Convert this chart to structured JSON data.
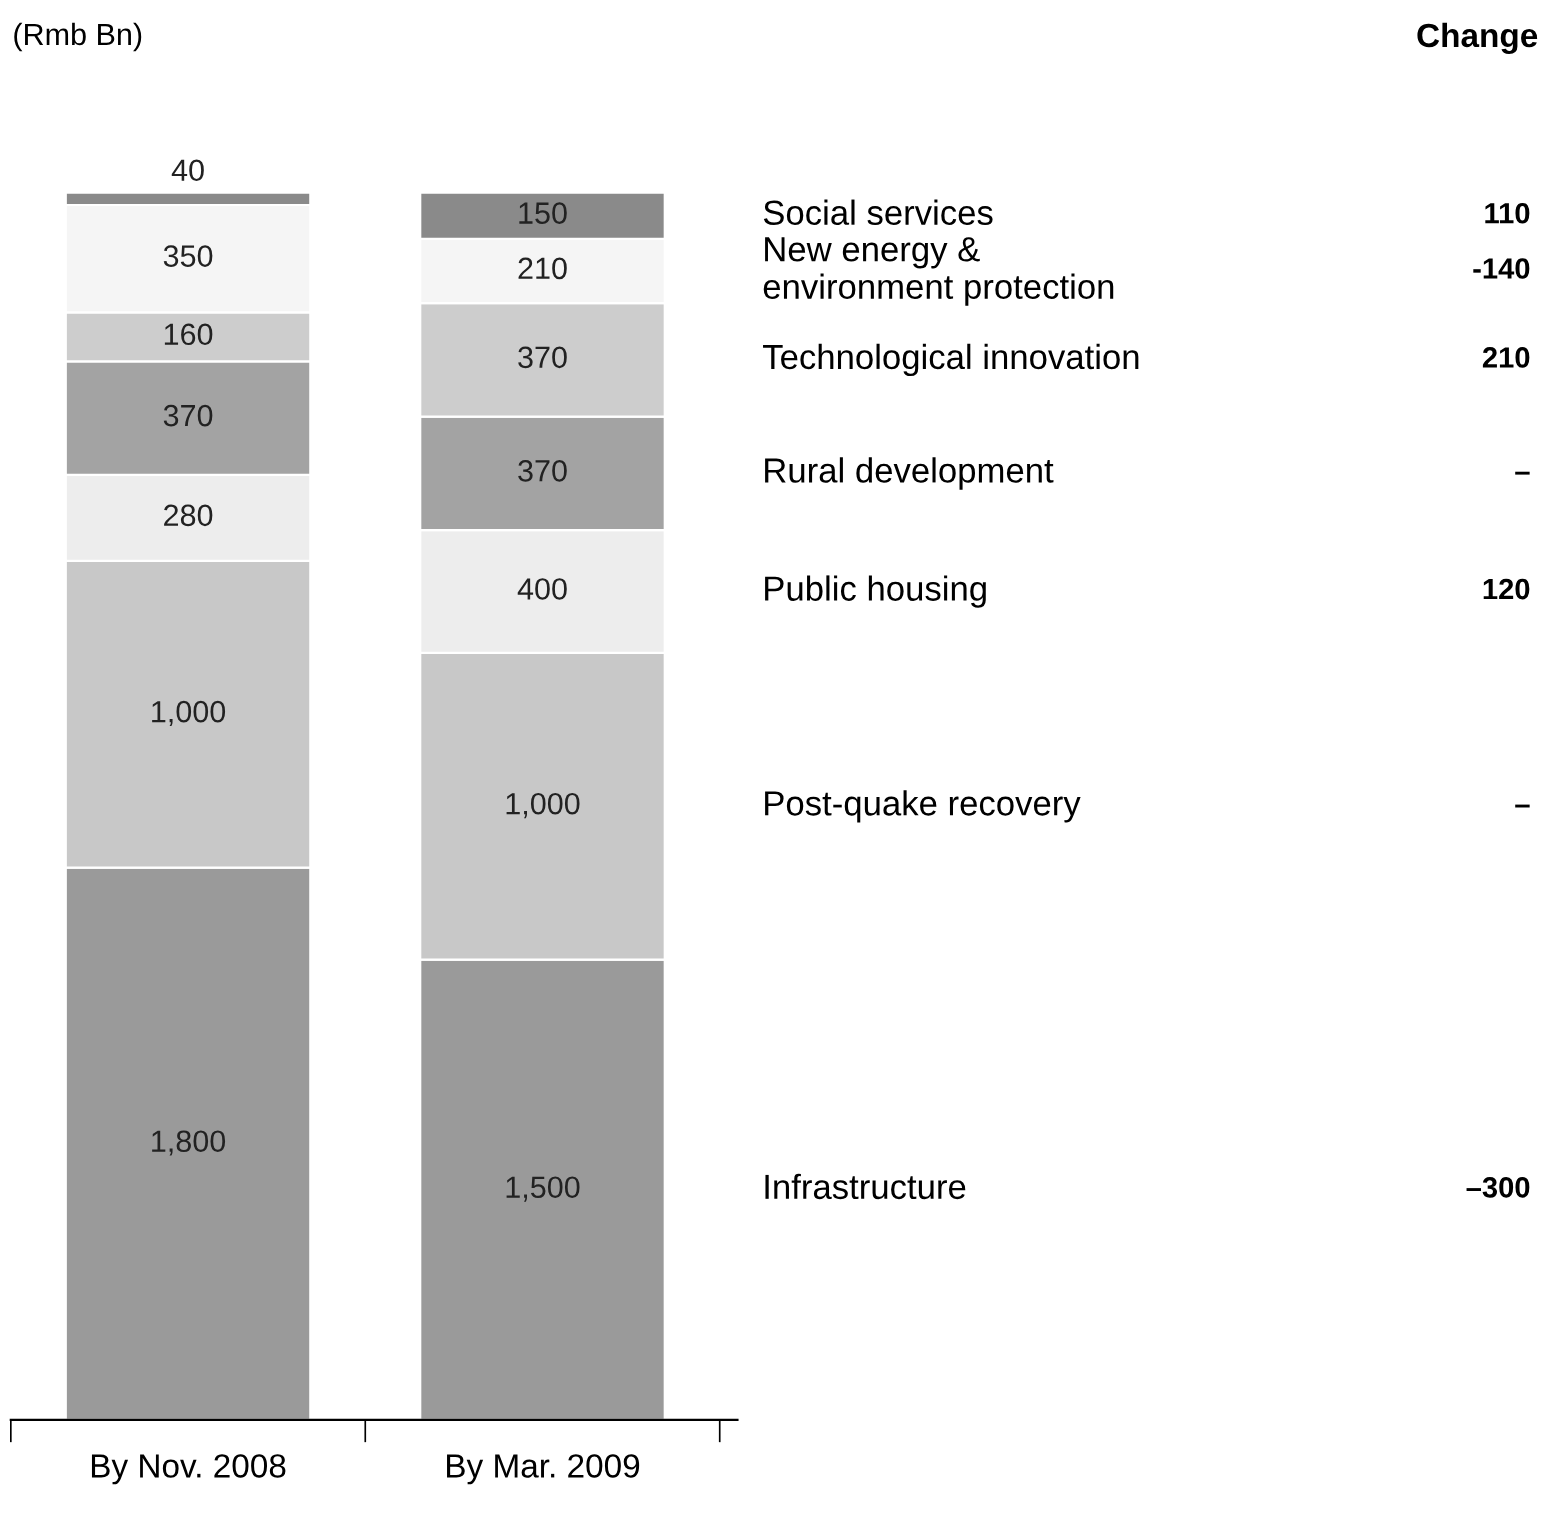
{
  "chart_data": {
    "type": "bar",
    "stacked": true,
    "ylabel": "(Rmb Bn)",
    "categories": [
      "By Nov. 2008",
      "By Mar. 2009"
    ],
    "series": [
      {
        "name": "Infrastructure",
        "color": "#9a9a9a",
        "values": [
          1800,
          1500
        ],
        "value_labels": [
          "1,800",
          "1,500"
        ]
      },
      {
        "name": "Post-quake recovery",
        "color": "#c8c8c8",
        "values": [
          1000,
          1000
        ],
        "value_labels": [
          "1,000",
          "1,000"
        ]
      },
      {
        "name": "Public housing",
        "color": "#ededed",
        "values": [
          280,
          400
        ],
        "value_labels": [
          "280",
          "400"
        ]
      },
      {
        "name": "Rural development",
        "color": "#a3a3a3",
        "values": [
          370,
          370
        ],
        "value_labels": [
          "370",
          "370"
        ]
      },
      {
        "name": "Technological innovation",
        "color": "#cdcdcd",
        "values": [
          160,
          370
        ],
        "value_labels": [
          "160",
          "370"
        ]
      },
      {
        "name": "New energy &\nenvironment protection",
        "color": "#f5f5f5",
        "values": [
          350,
          210
        ],
        "value_labels": [
          "350",
          "210"
        ]
      },
      {
        "name": "Social services",
        "color": "#8a8a8a",
        "values": [
          40,
          150
        ],
        "value_labels": [
          "40",
          "150"
        ]
      }
    ],
    "legend": false,
    "grid": false,
    "annotations": [
      "Change",
      "–300",
      "–",
      "120",
      "–",
      "210",
      "-140",
      "110"
    ]
  }
}
